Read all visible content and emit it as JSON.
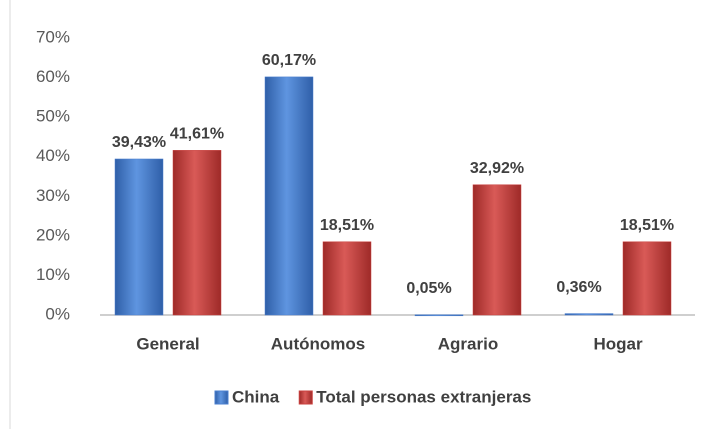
{
  "chart_data": {
    "type": "bar",
    "categories": [
      "General",
      "Autónomos",
      "Agrario",
      "Hogar"
    ],
    "series": [
      {
        "name": "China",
        "color": "#4a7fcf",
        "values": [
          39.43,
          60.17,
          0.05,
          0.36
        ],
        "value_labels": [
          "39,43%",
          "60,17%",
          "0,05%",
          "0,36%"
        ]
      },
      {
        "name": "Total personas extranjeras",
        "color": "#c9403e",
        "values": [
          41.61,
          18.51,
          32.92,
          18.51
        ],
        "value_labels": [
          "41,61%",
          "18,51%",
          "32,92%",
          "18,51%"
        ]
      }
    ],
    "ylim": [
      0,
      70
    ],
    "yticks": [
      {
        "value": 0,
        "label": "0%"
      },
      {
        "value": 10,
        "label": "10%"
      },
      {
        "value": 20,
        "label": "20%"
      },
      {
        "value": 30,
        "label": "30%"
      },
      {
        "value": 40,
        "label": "40%"
      },
      {
        "value": 50,
        "label": "50%"
      },
      {
        "value": 60,
        "label": "60%"
      },
      {
        "value": 70,
        "label": "70%"
      }
    ],
    "grid": false,
    "legend": "bottom"
  }
}
